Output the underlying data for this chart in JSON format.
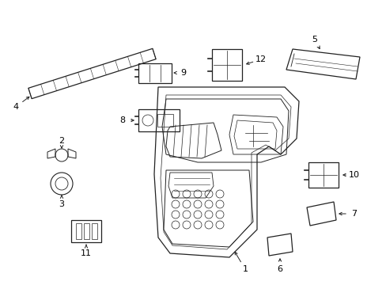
{
  "background_color": "#ffffff",
  "line_color": "#222222",
  "label_color": "#000000",
  "fig_w": 4.89,
  "fig_h": 3.6,
  "dpi": 100
}
